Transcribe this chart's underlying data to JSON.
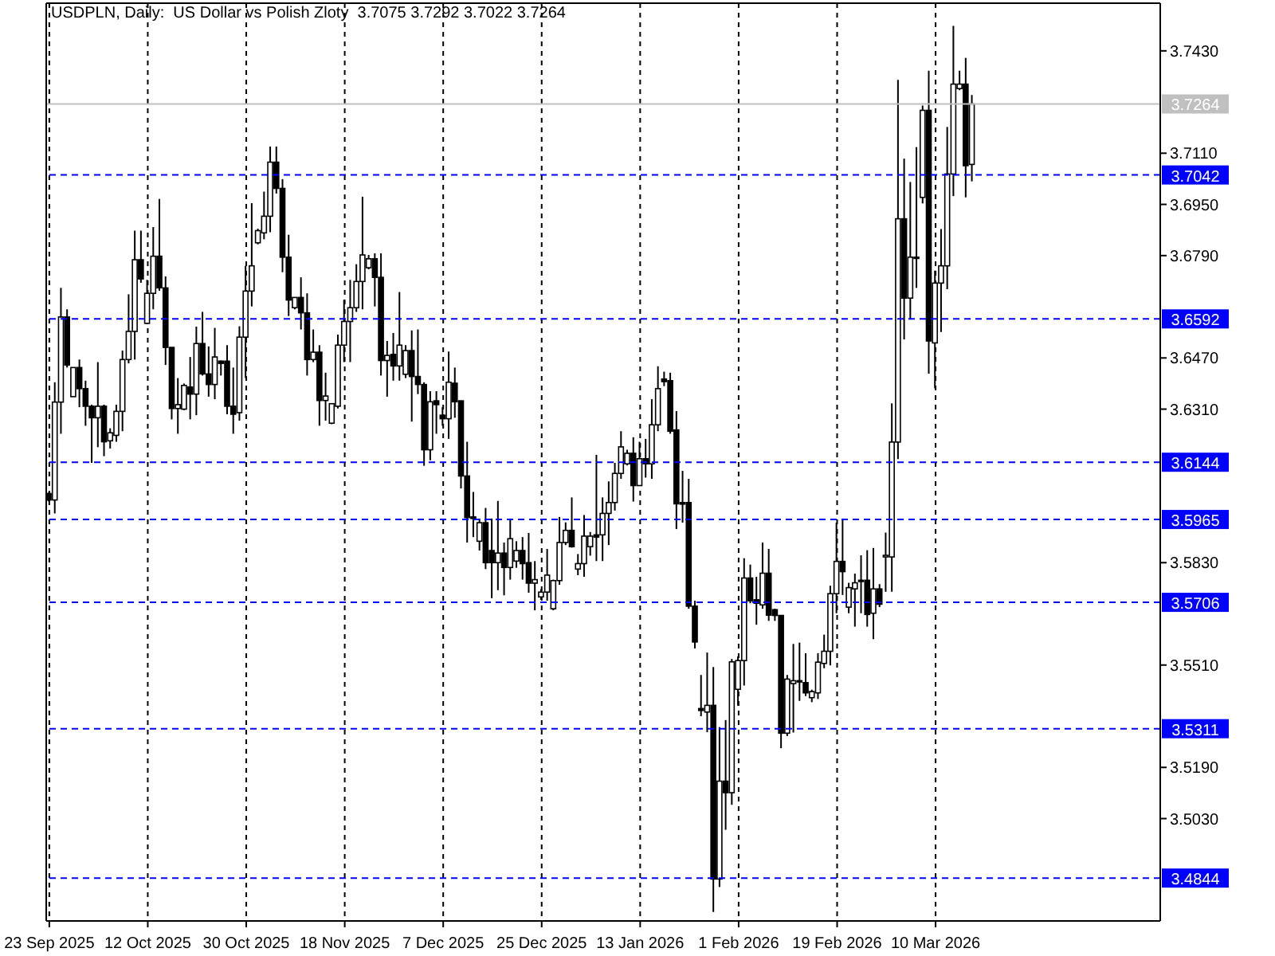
{
  "chart_data": {
    "type": "candlestick",
    "title": "USDPLN, Daily:  US Dollar vs Polish Zloty  3.7075 3.7292 3.7022 3.7264",
    "color": "#000000",
    "categories": [
      "23 Sep 2025",
      null,
      null,
      null,
      null,
      null,
      null,
      null,
      null,
      null,
      null,
      null,
      null,
      null,
      null,
      null,
      "12 Oct 2025",
      null,
      null,
      null,
      null,
      null,
      null,
      null,
      null,
      null,
      null,
      null,
      null,
      null,
      null,
      null,
      "30 Oct 2025",
      null,
      null,
      null,
      null,
      null,
      null,
      null,
      null,
      null,
      null,
      null,
      null,
      null,
      null,
      null,
      "18 Nov 2025",
      null,
      null,
      null,
      null,
      null,
      null,
      null,
      null,
      null,
      null,
      null,
      null,
      null,
      null,
      null,
      "7 Dec 2025",
      null,
      null,
      null,
      null,
      null,
      null,
      null,
      null,
      null,
      null,
      null,
      null,
      null,
      null,
      null,
      "25 Dec 2025",
      null,
      null,
      null,
      null,
      null,
      null,
      null,
      null,
      null,
      null,
      null,
      null,
      null,
      null,
      null,
      "13 Jan 2026",
      null,
      null,
      null,
      null,
      null,
      null,
      null,
      null,
      null,
      null,
      null,
      null,
      null,
      null,
      null,
      "1 Feb 2026",
      null,
      null,
      null,
      null,
      null,
      null,
      null,
      null,
      null,
      null,
      null,
      null,
      null,
      null,
      null,
      "19 Feb 2026",
      null,
      null,
      null,
      null,
      null,
      null,
      null,
      null,
      null,
      null,
      null,
      null,
      null,
      null,
      null,
      "10 Mar 2026",
      null,
      null,
      null,
      null,
      null,
      null,
      null,
      null,
      null,
      null,
      null,
      null,
      null,
      null,
      null,
      null,
      null,
      null,
      null,
      null,
      null,
      null,
      null,
      null,
      null,
      null,
      null,
      null,
      null,
      null,
      null,
      null,
      null,
      null,
      null,
      null
    ],
    "ohlc": [
      [
        3.6046,
        3.6049,
        3.6022,
        3.6026
      ],
      [
        3.6026,
        3.6394,
        3.5984,
        3.6332
      ],
      [
        3.6332,
        3.6689,
        3.6233,
        3.6598
      ],
      [
        3.6598,
        3.6622,
        3.644,
        3.6448
      ],
      [
        3.6349,
        3.644,
        3.6349,
        3.644
      ],
      [
        3.644,
        3.6465,
        3.6316,
        3.6374
      ],
      [
        3.6374,
        3.6399,
        3.6258,
        3.6319
      ],
      [
        3.6319,
        3.6324,
        3.6142,
        3.6283
      ],
      [
        3.6283,
        3.6457,
        3.6191,
        3.6319
      ],
      [
        3.6319,
        3.6324,
        3.6163,
        3.6208
      ],
      [
        3.6211,
        3.625,
        3.6187,
        3.6236
      ],
      [
        3.6228,
        3.6324,
        3.6208,
        3.6303
      ],
      [
        3.6303,
        3.6493,
        3.6241,
        3.6465
      ],
      [
        3.6465,
        3.6669,
        3.6453,
        3.6553
      ],
      [
        3.6553,
        3.6868,
        3.6465,
        3.6777
      ],
      [
        3.6777,
        3.6868,
        3.6705,
        3.6717
      ],
      [
        3.6578,
        3.6714,
        3.6576,
        3.6672
      ],
      [
        3.6672,
        3.6879,
        3.6622,
        3.6788
      ],
      [
        3.6788,
        3.6967,
        3.668,
        3.6689
      ],
      [
        3.6689,
        3.6725,
        3.6448,
        3.6503
      ],
      [
        3.6503,
        3.6503,
        3.6278,
        3.6312
      ],
      [
        3.6312,
        3.6407,
        3.6233,
        3.6324
      ],
      [
        3.631,
        3.639,
        3.6307,
        3.6384
      ],
      [
        3.6379,
        3.6473,
        3.6278,
        3.6357
      ],
      [
        3.6357,
        3.6568,
        3.6291,
        3.6515
      ],
      [
        3.6515,
        3.6614,
        3.6415,
        3.642
      ],
      [
        3.642,
        3.6506,
        3.6349,
        3.6387
      ],
      [
        3.6387,
        3.6564,
        3.6341,
        3.6473
      ],
      [
        3.646,
        3.6462,
        3.6415,
        3.6453
      ],
      [
        3.646,
        3.651,
        3.6294,
        3.6319
      ],
      [
        3.6319,
        3.644,
        3.6233,
        3.6294
      ],
      [
        3.6299,
        3.6569,
        3.6274,
        3.6535
      ],
      [
        3.6535,
        3.6758,
        3.6407,
        3.6679
      ],
      [
        3.6679,
        3.6954,
        3.6631,
        3.6758
      ],
      [
        3.683,
        3.6874,
        3.6825,
        3.6868
      ],
      [
        3.6861,
        3.699,
        3.6841,
        3.6913
      ],
      [
        3.6913,
        3.7131,
        3.6863,
        3.7082
      ],
      [
        3.7082,
        3.7131,
        3.6984,
        3.7
      ],
      [
        3.7,
        3.7029,
        3.6738,
        3.6785
      ],
      [
        3.6785,
        3.6855,
        3.6601,
        3.6651
      ],
      [
        3.6627,
        3.6659,
        3.6622,
        3.6659
      ],
      [
        3.6659,
        3.6722,
        3.6559,
        3.6611
      ],
      [
        3.6611,
        3.6672,
        3.6415,
        3.6465
      ],
      [
        3.6465,
        3.6559,
        3.6457,
        3.6488
      ],
      [
        3.6488,
        3.651,
        3.6258,
        3.6337
      ],
      [
        3.6337,
        3.6424,
        3.6274,
        3.6351
      ],
      [
        3.6266,
        3.6327,
        3.6263,
        3.6327
      ],
      [
        3.6319,
        3.6543,
        3.6312,
        3.651
      ],
      [
        3.651,
        3.6652,
        3.6457,
        3.6584
      ],
      [
        3.6584,
        3.6714,
        3.6457,
        3.6627
      ],
      [
        3.6627,
        3.6763,
        3.6614,
        3.6709
      ],
      [
        3.6709,
        3.6974,
        3.6622,
        3.6792
      ],
      [
        3.6752,
        3.6792,
        3.6747,
        3.678
      ],
      [
        3.678,
        3.6797,
        3.6631,
        3.6722
      ],
      [
        3.6722,
        3.6797,
        3.6415,
        3.6462
      ],
      [
        3.6462,
        3.6523,
        3.6349,
        3.6478
      ],
      [
        3.6481,
        3.6548,
        3.6399,
        3.6445
      ],
      [
        3.6445,
        3.6676,
        3.6399,
        3.651
      ],
      [
        3.6419,
        3.651,
        3.6407,
        3.6493
      ],
      [
        3.6493,
        3.6556,
        3.6271,
        3.6412
      ],
      [
        3.6412,
        3.6559,
        3.6357,
        3.6387
      ],
      [
        3.6387,
        3.6394,
        3.6133,
        3.6183
      ],
      [
        3.6183,
        3.6366,
        3.615,
        3.6333
      ],
      [
        3.6336,
        3.6366,
        3.6233,
        3.6324
      ],
      [
        3.6291,
        3.6316,
        3.6258,
        3.628
      ],
      [
        3.628,
        3.649,
        3.6217,
        3.6394
      ],
      [
        3.6391,
        3.644,
        3.6283,
        3.6333
      ],
      [
        3.6336,
        3.6336,
        3.6062,
        3.6101
      ],
      [
        3.6101,
        3.6208,
        3.5893,
        3.5971
      ],
      [
        3.5973,
        3.6051,
        3.591,
        3.5968
      ],
      [
        3.5897,
        3.5968,
        3.5868,
        3.5955
      ],
      [
        3.5955,
        3.6001,
        3.581,
        3.583
      ],
      [
        3.5868,
        3.5968,
        3.5719,
        3.583
      ],
      [
        3.583,
        3.6023,
        3.5744,
        3.586
      ],
      [
        3.586,
        3.5893,
        3.5728,
        3.5815
      ],
      [
        3.5815,
        3.5968,
        3.5777,
        3.5905
      ],
      [
        3.5835,
        3.5897,
        3.5814,
        3.5868
      ],
      [
        3.5868,
        3.591,
        3.5777,
        3.5827
      ],
      [
        3.583,
        3.5923,
        3.5736,
        3.5766
      ],
      [
        3.5766,
        3.5835,
        3.5681,
        3.5777
      ],
      [
        3.5723,
        3.5747,
        3.5714,
        3.5738
      ],
      [
        3.5738,
        3.5873,
        3.5711,
        3.5791
      ],
      [
        3.5686,
        3.5777,
        3.5681,
        3.5774
      ],
      [
        3.5774,
        3.5973,
        3.5761,
        3.5893
      ],
      [
        3.5893,
        3.5956,
        3.5885,
        3.5931
      ],
      [
        3.5931,
        3.6034,
        3.5877,
        3.588
      ],
      [
        3.581,
        3.5857,
        3.5791,
        3.5827
      ],
      [
        3.5827,
        3.5979,
        3.5786,
        3.5913
      ],
      [
        3.588,
        3.5926,
        3.5852,
        3.5913
      ],
      [
        3.5917,
        3.6167,
        3.5835,
        3.591
      ],
      [
        3.5917,
        3.6034,
        3.5835,
        3.5984
      ],
      [
        3.5984,
        3.6084,
        3.5885,
        3.6018
      ],
      [
        3.6018,
        3.6142,
        3.5993,
        3.6109
      ],
      [
        3.6109,
        3.6241,
        3.6092,
        3.6192
      ],
      [
        3.6139,
        3.6183,
        3.6134,
        3.6172
      ],
      [
        3.6172,
        3.6222,
        3.6021,
        3.6071
      ],
      [
        3.6071,
        3.6208,
        3.6071,
        3.6155
      ],
      [
        3.6155,
        3.6217,
        3.6096,
        3.6139
      ],
      [
        3.6139,
        3.6341,
        3.6092,
        3.6261
      ],
      [
        3.6261,
        3.6444,
        3.6241,
        3.6374
      ],
      [
        3.6404,
        3.6427,
        3.6382,
        3.6396
      ],
      [
        3.6399,
        3.6424,
        3.6233,
        3.6241
      ],
      [
        3.6245,
        3.6304,
        3.5935,
        3.6014
      ],
      [
        3.6018,
        3.6117,
        3.5955,
        3.6013
      ],
      [
        3.6018,
        3.6092,
        3.5686,
        3.5694
      ],
      [
        3.5694,
        3.5711,
        3.5562,
        3.5582
      ],
      [
        3.5374,
        3.5479,
        3.535,
        3.5368
      ],
      [
        3.5363,
        3.5549,
        3.53,
        3.5384
      ],
      [
        3.5384,
        3.5504,
        3.4738,
        3.4841
      ],
      [
        3.4841,
        3.5316,
        3.4816,
        3.5147
      ],
      [
        3.5147,
        3.5338,
        3.4995,
        3.5111
      ],
      [
        3.5111,
        3.5529,
        3.5073,
        3.552
      ],
      [
        3.5434,
        3.5537,
        3.5383,
        3.5524
      ],
      [
        3.5524,
        3.5844,
        3.5446,
        3.5782
      ],
      [
        3.5782,
        3.5824,
        3.5703,
        3.5711
      ],
      [
        3.5714,
        3.5786,
        3.5636,
        3.5703
      ],
      [
        3.5698,
        3.5893,
        3.5686,
        3.5797
      ],
      [
        3.5797,
        3.5873,
        3.5648,
        3.5666
      ],
      [
        3.5683,
        3.5686,
        3.5648,
        3.5665
      ],
      [
        3.5665,
        3.5665,
        3.525,
        3.5297
      ],
      [
        3.5297,
        3.5479,
        3.5288,
        3.5466
      ],
      [
        3.5452,
        3.5576,
        3.5299,
        3.5461
      ],
      [
        3.5457,
        3.558,
        3.5398,
        3.5461
      ],
      [
        3.5455,
        3.5547,
        3.5413,
        3.5423
      ],
      [
        3.5408,
        3.5433,
        3.5394,
        3.5427
      ],
      [
        3.5423,
        3.5547,
        3.5404,
        3.5519
      ],
      [
        3.5515,
        3.5605,
        3.55,
        3.5553
      ],
      [
        3.5553,
        3.5758,
        3.5509,
        3.5733
      ],
      [
        3.5733,
        3.5955,
        3.5672,
        3.5834
      ],
      [
        3.5834,
        3.5968,
        3.5729,
        3.5802
      ],
      [
        3.5691,
        3.5767,
        3.5672,
        3.5752
      ],
      [
        3.5748,
        3.5796,
        3.563,
        3.5767
      ],
      [
        3.5771,
        3.5853,
        3.5672,
        3.5775
      ],
      [
        3.5775,
        3.5869,
        3.563,
        3.5668
      ],
      [
        3.5672,
        3.5876,
        3.5591,
        3.5748
      ],
      [
        3.5748,
        3.5763,
        3.5691,
        3.57
      ],
      [
        3.5848,
        3.5924,
        3.5739,
        3.5853
      ],
      [
        3.5848,
        3.6328,
        3.5739,
        3.6207
      ],
      [
        3.6207,
        3.7339,
        3.6154,
        3.6905
      ],
      [
        3.6905,
        3.7093,
        3.6528,
        3.6657
      ],
      [
        3.6657,
        3.702,
        3.659,
        3.6785
      ],
      [
        3.6781,
        3.7129,
        3.6689,
        3.6785
      ],
      [
        3.6972,
        3.7259,
        3.6953,
        3.7244
      ],
      [
        3.7244,
        3.7368,
        3.6421,
        3.6523
      ],
      [
        3.6517,
        3.6743,
        3.6375,
        3.6704
      ],
      [
        3.6704,
        3.6873,
        3.6551,
        3.6758
      ],
      [
        3.6758,
        3.7192,
        3.6685,
        3.7045
      ],
      [
        3.7045,
        3.7508,
        3.6976,
        3.7326
      ],
      [
        3.7312,
        3.7368,
        3.7307,
        3.7326
      ],
      [
        3.7326,
        3.7408,
        3.6972,
        3.7071
      ],
      [
        3.7075,
        3.7292,
        3.7022,
        3.7264
      ],
      null,
      null,
      null,
      null,
      null,
      null,
      null,
      null,
      null,
      null,
      null,
      null,
      null,
      null,
      null,
      null,
      null,
      null,
      null,
      null,
      null,
      null,
      null,
      null,
      null,
      null,
      null,
      null,
      null,
      null
    ],
    "ylim": [
      3.471,
      3.7579
    ],
    "yticks": [
      {
        "value": 3.743,
        "label": "3.7430"
      },
      {
        "value": 3.711,
        "label": "3.7110"
      },
      {
        "value": 3.695,
        "label": "3.6950"
      },
      {
        "value": 3.679,
        "label": "3.6790"
      },
      {
        "value": 3.647,
        "label": "3.6470"
      },
      {
        "value": 3.631,
        "label": "3.6310"
      },
      {
        "value": 3.583,
        "label": "3.5830"
      },
      {
        "value": 3.551,
        "label": "3.5510"
      },
      {
        "value": 3.519,
        "label": "3.5190"
      },
      {
        "value": 3.503,
        "label": "3.5030"
      }
    ],
    "grid": "x",
    "ref_lines": [
      {
        "axis": "y",
        "value": 3.7264,
        "label": "3.7264",
        "color": "#c0c0c0",
        "line_style": "solid"
      },
      {
        "axis": "y",
        "value": 3.7042,
        "label": "3.7042",
        "color": "#0000ff",
        "line_style": "dashed"
      },
      {
        "axis": "y",
        "value": 3.6592,
        "label": "3.6592",
        "color": "#0000ff",
        "line_style": "dashed"
      },
      {
        "axis": "y",
        "value": 3.6144,
        "label": "3.6144",
        "color": "#0000ff",
        "line_style": "dashed"
      },
      {
        "axis": "y",
        "value": 3.5965,
        "label": "3.5965",
        "color": "#0000ff",
        "line_style": "dashed"
      },
      {
        "axis": "y",
        "value": 3.5706,
        "label": "3.5706",
        "color": "#0000ff",
        "line_style": "dashed"
      },
      {
        "axis": "y",
        "value": 3.5311,
        "label": "3.5311",
        "color": "#0000ff",
        "line_style": "dashed"
      },
      {
        "axis": "y",
        "value": 3.4844,
        "label": "3.4844",
        "color": "#0000ff",
        "line_style": "dashed"
      }
    ]
  }
}
